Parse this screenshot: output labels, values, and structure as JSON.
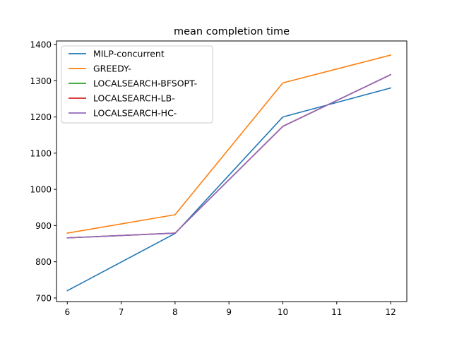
{
  "chart_data": {
    "type": "line",
    "title": "mean completion time",
    "xlabel": "",
    "ylabel": "",
    "x": [
      6,
      8,
      10,
      12
    ],
    "xlim": [
      5.8,
      12.3
    ],
    "ylim": [
      690,
      1410
    ],
    "xticks": [
      6,
      7,
      8,
      9,
      10,
      11,
      12
    ],
    "yticks": [
      700,
      800,
      900,
      1000,
      1100,
      1200,
      1300,
      1400
    ],
    "grid": false,
    "legend_position": "top-left",
    "series": [
      {
        "name": "MILP-concurrent",
        "color": "#1f77b4",
        "values": [
          720,
          878,
          1200,
          1280
        ]
      },
      {
        "name": "GREEDY-",
        "color": "#ff7f0e",
        "values": [
          879,
          930,
          1294,
          1371
        ]
      },
      {
        "name": "LOCALSEARCH-BFSOPT-",
        "color": "#2ca02c",
        "values": [
          866,
          879,
          1174,
          1317
        ]
      },
      {
        "name": "LOCALSEARCH-LB-",
        "color": "#d62728",
        "values": [
          866,
          879,
          1174,
          1317
        ]
      },
      {
        "name": "LOCALSEARCH-HC-",
        "color": "#9467bd",
        "values": [
          866,
          879,
          1174,
          1317
        ]
      }
    ]
  }
}
